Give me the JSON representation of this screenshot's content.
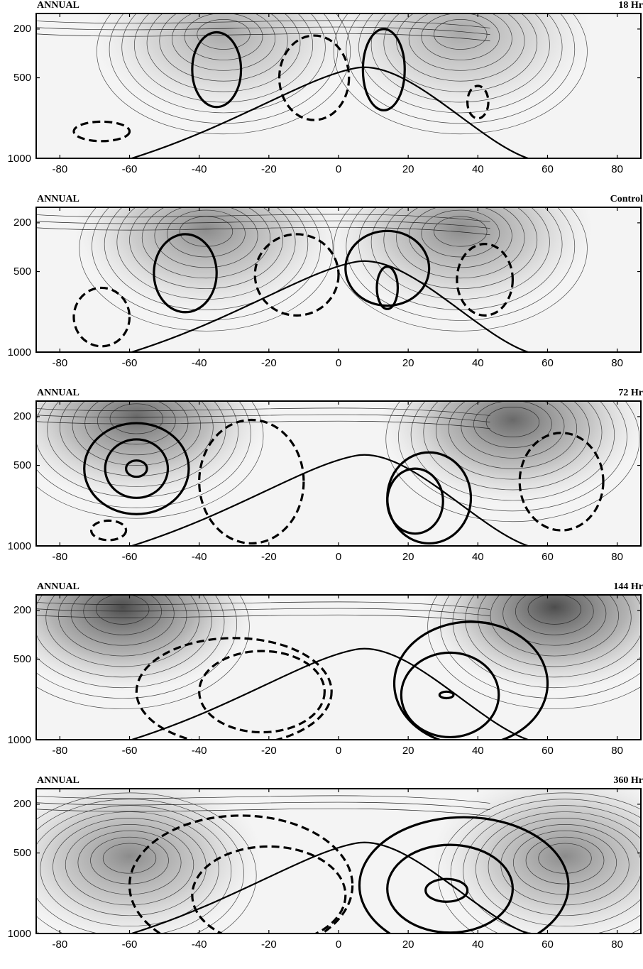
{
  "chart_data": [
    {
      "type": "contour",
      "left_label": "ANNUAL",
      "right_label": "18 Hr",
      "xticks": [
        "-80",
        "-60",
        "-40",
        "-20",
        "0",
        "20",
        "40",
        "60",
        "80"
      ],
      "yticks": [
        "200",
        "500",
        "1000"
      ],
      "xlim": [
        -87,
        87
      ],
      "ylim": [
        1000,
        100
      ],
      "shading": "light",
      "solid_cells": [
        {
          "lat": -35,
          "p": 450,
          "dlat": 7,
          "dp": 230
        },
        {
          "lat": 13,
          "p": 450,
          "dlat": 6,
          "dp": 250
        }
      ],
      "dashed_cells": [
        {
          "lat": -7,
          "p": 500,
          "dlat": 10,
          "dp": 260
        },
        {
          "lat": 40,
          "p": 650,
          "dlat": 3,
          "dp": 100
        },
        {
          "lat": -68,
          "p": 830,
          "dlat": 8,
          "dp": 60
        }
      ],
      "maxima": [
        {
          "lat": -33,
          "p": 220
        },
        {
          "lat": 35,
          "p": 220
        }
      ]
    },
    {
      "type": "contour",
      "left_label": "ANNUAL",
      "right_label": "Control",
      "xticks": [
        "-80",
        "-60",
        "-40",
        "-20",
        "0",
        "20",
        "40",
        "60",
        "80"
      ],
      "yticks": [
        "200",
        "500",
        "1000"
      ],
      "xlim": [
        -87,
        87
      ],
      "ylim": [
        1000,
        100
      ],
      "shading": "medium",
      "solid_cells": [
        {
          "lat": -44,
          "p": 510,
          "dlat": 9,
          "dp": 240
        },
        {
          "lat": 14,
          "p": 480,
          "dlat": 12,
          "dp": 230
        },
        {
          "lat": 14,
          "p": 600,
          "dlat": 3,
          "dp": 130
        }
      ],
      "dashed_cells": [
        {
          "lat": -12,
          "p": 520,
          "dlat": 12,
          "dp": 250
        },
        {
          "lat": 42,
          "p": 550,
          "dlat": 8,
          "dp": 220
        },
        {
          "lat": -68,
          "p": 780,
          "dlat": 8,
          "dp": 180
        }
      ],
      "maxima": [
        {
          "lat": -38,
          "p": 240
        },
        {
          "lat": 35,
          "p": 240
        }
      ]
    },
    {
      "type": "contour",
      "left_label": "ANNUAL",
      "right_label": "72 Hr",
      "xticks": [
        "-80",
        "-60",
        "-40",
        "-20",
        "0",
        "20",
        "40",
        "60",
        "80"
      ],
      "yticks": [
        "200",
        "500",
        "1000"
      ],
      "xlim": [
        -87,
        87
      ],
      "ylim": [
        1000,
        100
      ],
      "shading": "dark",
      "solid_cells": [
        {
          "lat": -58,
          "p": 520,
          "dlat": 15,
          "dp": 280
        },
        {
          "lat": -58,
          "p": 520,
          "dlat": 9,
          "dp": 180
        },
        {
          "lat": -58,
          "p": 520,
          "dlat": 3,
          "dp": 50
        },
        {
          "lat": 26,
          "p": 700,
          "dlat": 12,
          "dp": 280
        },
        {
          "lat": 22,
          "p": 720,
          "dlat": 8,
          "dp": 200
        }
      ],
      "dashed_cells": [
        {
          "lat": -25,
          "p": 600,
          "dlat": 15,
          "dp": 380
        },
        {
          "lat": 64,
          "p": 600,
          "dlat": 12,
          "dp": 300
        },
        {
          "lat": -66,
          "p": 900,
          "dlat": 5,
          "dp": 60
        }
      ],
      "maxima": [
        {
          "lat": -58,
          "p": 200
        },
        {
          "lat": 50,
          "p": 220
        }
      ]
    },
    {
      "type": "contour",
      "left_label": "ANNUAL",
      "right_label": "144 Hr",
      "xticks": [
        "-80",
        "-60",
        "-40",
        "-20",
        "0",
        "20",
        "40",
        "60",
        "80"
      ],
      "yticks": [
        "200",
        "500",
        "1000"
      ],
      "xlim": [
        -87,
        87
      ],
      "ylim": [
        1000,
        100
      ],
      "shading": "darker",
      "solid_cells": [
        {
          "lat": 38,
          "p": 650,
          "dlat": 22,
          "dp": 380
        },
        {
          "lat": 32,
          "p": 720,
          "dlat": 14,
          "dp": 260
        },
        {
          "lat": 31,
          "p": 720,
          "dlat": 2,
          "dp": 20
        }
      ],
      "dashed_cells": [
        {
          "lat": -30,
          "p": 700,
          "dlat": 28,
          "dp": 330
        },
        {
          "lat": -22,
          "p": 700,
          "dlat": 18,
          "dp": 250
        }
      ],
      "maxima": [
        {
          "lat": -62,
          "p": 180
        },
        {
          "lat": 62,
          "p": 180
        }
      ]
    },
    {
      "type": "contour",
      "left_label": "ANNUAL",
      "right_label": "360 Hr",
      "xticks": [
        "-80",
        "-60",
        "-40",
        "-20",
        "0",
        "20",
        "40",
        "60",
        "80"
      ],
      "yticks": [
        "200",
        "500",
        "1000"
      ],
      "xlim": [
        -87,
        87
      ],
      "ylim": [
        1000,
        100
      ],
      "shading": "medium",
      "solid_cells": [
        {
          "lat": 36,
          "p": 700,
          "dlat": 30,
          "dp": 420
        },
        {
          "lat": 32,
          "p": 720,
          "dlat": 18,
          "dp": 270
        },
        {
          "lat": 31,
          "p": 730,
          "dlat": 6,
          "dp": 70
        }
      ],
      "dashed_cells": [
        {
          "lat": -28,
          "p": 700,
          "dlat": 32,
          "dp": 430
        },
        {
          "lat": -20,
          "p": 760,
          "dlat": 22,
          "dp": 300
        }
      ],
      "maxima": [
        {
          "lat": -60,
          "p": 520
        },
        {
          "lat": 65,
          "p": 520
        }
      ]
    }
  ]
}
